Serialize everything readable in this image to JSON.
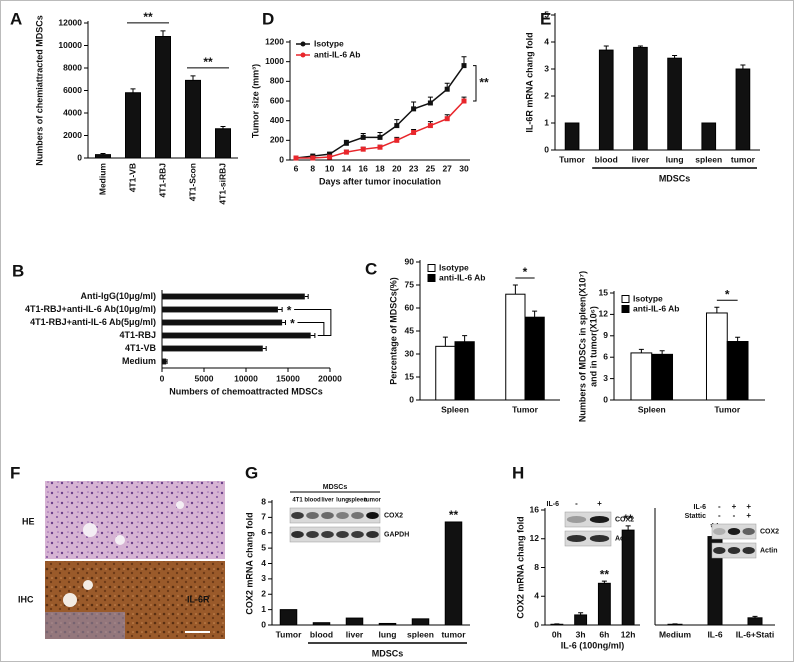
{
  "chart_data": [
    {
      "type": "bar",
      "panel": "A",
      "ylabel": "Numbers of chemiattracted MDSCs",
      "categories": [
        "Medium",
        "4T1-VB",
        "4T1-RBJ",
        "4T1-Scon",
        "4T1-siRBJ"
      ],
      "values": [
        300,
        5800,
        10800,
        6900,
        2600
      ],
      "errors": [
        100,
        350,
        500,
        400,
        200
      ],
      "color": "#111111",
      "ylim": [
        0,
        12000
      ],
      "yticks": [
        0,
        2000,
        4000,
        6000,
        8000,
        10000,
        12000
      ],
      "annotations": [
        "**",
        "**"
      ]
    },
    {
      "type": "line",
      "panel": "D",
      "ylabel": "Tumor size (mm³)",
      "xlabel": "Days after tumor inoculation",
      "categories": [
        "6",
        "8",
        "10",
        "14",
        "16",
        "18",
        "20",
        "23",
        "25",
        "27",
        "30"
      ],
      "series": [
        {
          "name": "Isotype",
          "color": "#111111",
          "values": [
            20,
            40,
            60,
            170,
            230,
            230,
            350,
            520,
            580,
            720,
            960
          ],
          "errors": [
            10,
            10,
            15,
            30,
            40,
            50,
            60,
            70,
            60,
            60,
            90
          ]
        },
        {
          "name": "anti-IL-6 Ab",
          "color": "#e8262b",
          "values": [
            20,
            20,
            30,
            80,
            110,
            130,
            200,
            280,
            350,
            420,
            600
          ],
          "errors": [
            5,
            5,
            10,
            20,
            20,
            20,
            30,
            30,
            40,
            40,
            40
          ]
        }
      ],
      "ylim": [
        0,
        1200
      ],
      "yticks": [
        0,
        200,
        400,
        600,
        800,
        1000,
        1200
      ],
      "annotations": [
        "**"
      ]
    },
    {
      "type": "bar",
      "panel": "E",
      "ylabel": "IL-6R mRNA chang fold",
      "categories": [
        "Tumor",
        "blood",
        "liver",
        "lung",
        "spleen",
        "tumor"
      ],
      "values": [
        1,
        3.7,
        3.8,
        3.4,
        1,
        3.0
      ],
      "errors": [
        0,
        0.15,
        0.05,
        0.1,
        0,
        0.15
      ],
      "color": "#111111",
      "ylim": [
        0,
        5
      ],
      "yticks": [
        0,
        1,
        2,
        3,
        4,
        5
      ],
      "group_label": "MDSCs"
    },
    {
      "type": "barh",
      "panel": "B",
      "xlabel": "Numbers of chemoattracted MDSCs",
      "categories": [
        "Anti-IgG(10μg/ml)",
        "4T1-RBJ+anti-IL-6 Ab(10μg/ml)",
        "4T1-RBJ+anti-IL-6 Ab(5μg/ml)",
        "4T1-RBJ",
        "4T1-VB",
        "Medium"
      ],
      "values": [
        17000,
        13800,
        14300,
        17700,
        12000,
        500
      ],
      "errors": [
        400,
        500,
        400,
        500,
        400,
        100
      ],
      "color": "#111111",
      "xlim": [
        0,
        20000
      ],
      "xticks": [
        0,
        5000,
        10000,
        15000,
        20000
      ],
      "annotations": [
        "*",
        "*"
      ]
    },
    {
      "type": "bar",
      "panel": "C",
      "ylabel": "Percentage of MDSCs(%)",
      "categories": [
        "Spleen",
        "Tumor"
      ],
      "series": [
        {
          "name": "Isotype",
          "color": "#ffffff",
          "values": [
            35,
            69
          ],
          "errors": [
            6,
            6
          ]
        },
        {
          "name": "anti-IL-6 Ab",
          "color": "#000000",
          "values": [
            38,
            54
          ],
          "errors": [
            4,
            4
          ]
        }
      ],
      "ylim": [
        0,
        90
      ],
      "yticks": [
        0,
        15,
        30,
        45,
        60,
        75,
        90
      ],
      "annotations": [
        "*"
      ]
    },
    {
      "type": "bar",
      "ylabel": [
        "Numbers of MDSCs in spleen(X10⁷)",
        "and in tumor(X10⁶)"
      ],
      "categories": [
        "Spleen",
        "Tumor"
      ],
      "series": [
        {
          "name": "Isotype",
          "color": "#ffffff",
          "values": [
            6.6,
            12.2
          ],
          "errors": [
            0.5,
            0.8
          ]
        },
        {
          "name": "anti-IL-6 Ab",
          "color": "#000000",
          "values": [
            6.4,
            8.2
          ],
          "errors": [
            0.5,
            0.6
          ]
        }
      ],
      "ylim": [
        0,
        15
      ],
      "yticks": [
        0,
        3,
        6,
        9,
        12,
        15
      ],
      "annotations": [
        "*"
      ]
    },
    {
      "type": "bar",
      "panel": "G",
      "ylabel": "COX2 mRNA chang fold",
      "categories": [
        "Tumor",
        "blood",
        "liver",
        "lung",
        "spleen",
        "tumor"
      ],
      "values": [
        1,
        0.15,
        0.45,
        0.1,
        0.4,
        6.7
      ],
      "color": "#111111",
      "ylim": [
        0,
        8
      ],
      "yticks": [
        0,
        1,
        2,
        3,
        4,
        5,
        6,
        7,
        8
      ],
      "group_label": "MDSCs",
      "annotations": [
        "**"
      ],
      "blot": {
        "title": "MDSCs",
        "lanes": [
          "4T1",
          "blood",
          "liver",
          "lung",
          "spleen",
          "tumor"
        ],
        "rows": [
          "COX2",
          "GAPDH"
        ]
      }
    },
    {
      "type": "bar",
      "panel": "H",
      "ylabel": "COX2 mRNA chang fold",
      "xlabel": "IL-6 (100ng/ml)",
      "categories": [
        "0h",
        "3h",
        "6h",
        "12h"
      ],
      "values": [
        0.1,
        1.4,
        5.8,
        13.2
      ],
      "errors": [
        0.05,
        0.3,
        0.3,
        0.6
      ],
      "color": "#111111",
      "ylim": [
        0,
        16
      ],
      "yticks": [
        0,
        4,
        8,
        12,
        16
      ],
      "annotations": [
        "**",
        "**"
      ],
      "blot": {
        "treatments": [
          {
            "name": "IL-6",
            "signs": [
              "-",
              "+"
            ]
          }
        ],
        "rows": [
          "COX2",
          "Actin"
        ]
      }
    },
    {
      "type": "bar",
      "categories": [
        "Medium",
        "IL-6",
        "IL-6+Stati"
      ],
      "values": [
        0.1,
        12.3,
        1.0
      ],
      "errors": [
        0.05,
        0.3,
        0.2
      ],
      "color": "#111111",
      "ylim": [
        0,
        16
      ],
      "annotations": [
        "**"
      ],
      "blot": {
        "treatments": [
          {
            "name": "IL-6",
            "signs": [
              "-",
              "+",
              "+"
            ]
          },
          {
            "name": "Stattic",
            "signs": [
              "-",
              "-",
              "+"
            ]
          }
        ],
        "rows": [
          "COX2",
          "Actin"
        ]
      }
    }
  ],
  "image_panel": {
    "panel": "F",
    "rows": [
      "HE",
      "IHC"
    ],
    "stain_label": "IL-6R"
  }
}
